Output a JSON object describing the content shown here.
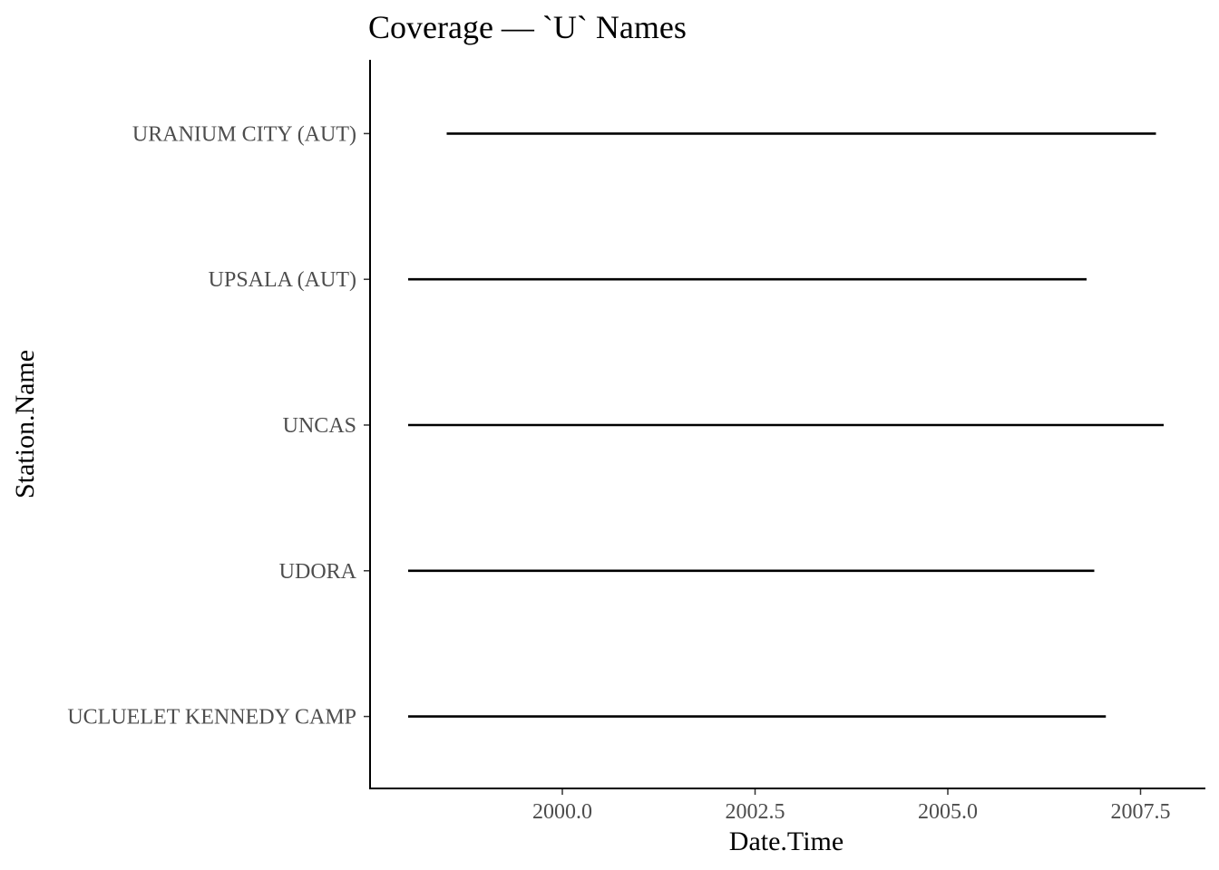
{
  "chart_data": {
    "type": "line",
    "title": "Coverage — `U` Names",
    "xlabel": "Date.Time",
    "ylabel": "Station.Name",
    "x_ticks": [
      2000.0,
      2002.5,
      2005.0,
      2007.5
    ],
    "x_tick_labels": [
      "2000.0",
      "2002.5",
      "2005.0",
      "2007.5"
    ],
    "xlim": [
      1997.5,
      2008.3
    ],
    "categories": [
      "UCLUELET KENNEDY CAMP",
      "UDORA",
      "UNCAS",
      "UPSALA (AUT)",
      "URANIUM CITY (AUT)"
    ],
    "segments": [
      {
        "station": "URANIUM CITY (AUT)",
        "start": 1998.5,
        "end": 2007.7
      },
      {
        "station": "UPSALA (AUT)",
        "start": 1998.0,
        "end": 2006.8
      },
      {
        "station": "UNCAS",
        "start": 1998.0,
        "end": 2007.8
      },
      {
        "station": "UDORA",
        "start": 1998.0,
        "end": 2006.9
      },
      {
        "station": "UCLUELET KENNEDY CAMP",
        "start": 1998.0,
        "end": 2007.05
      }
    ],
    "grid": false,
    "legend": "none"
  }
}
